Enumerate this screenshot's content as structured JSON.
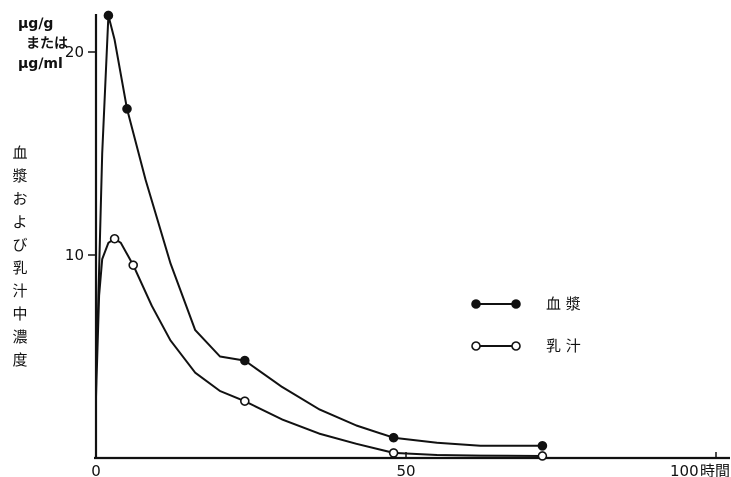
{
  "chart_data": {
    "type": "line",
    "title": "",
    "xlabel": "時間",
    "ylabel": "血漿および乳汁中濃度",
    "yunit_lines": [
      "μg/g",
      "または",
      "μg/ml"
    ],
    "xlim": [
      0,
      100
    ],
    "ylim": [
      0,
      23
    ],
    "xticks": [
      0,
      50,
      100
    ],
    "xtick_labels": [
      "0",
      "50",
      "100"
    ],
    "yticks": [
      10,
      20
    ],
    "ytick_labels": [
      "10",
      "20"
    ],
    "grid": false,
    "legend_position": "right",
    "series": [
      {
        "name": "血漿",
        "marker": "filled-circle",
        "color": "#111111",
        "x": [
          2,
          5,
          24,
          48,
          72
        ],
        "y": [
          21.8,
          17.2,
          4.8,
          1.0,
          0.6
        ],
        "curve_x": [
          0,
          1,
          2,
          3,
          5,
          8,
          12,
          16,
          20,
          24,
          30,
          36,
          42,
          48,
          55,
          62,
          72
        ],
        "curve_y": [
          3.5,
          15.0,
          21.8,
          20.6,
          17.2,
          13.7,
          9.6,
          6.3,
          5.0,
          4.8,
          3.5,
          2.4,
          1.6,
          1.0,
          0.75,
          0.6,
          0.6
        ]
      },
      {
        "name": "乳汁",
        "marker": "open-circle",
        "color": "#111111",
        "x": [
          3,
          6,
          24,
          48,
          72
        ],
        "y": [
          10.8,
          9.5,
          2.8,
          0.25,
          0.1
        ],
        "curve_x": [
          0,
          0.5,
          1,
          2,
          3,
          4,
          6,
          9,
          12,
          16,
          20,
          24,
          30,
          36,
          42,
          48,
          55,
          62,
          72
        ],
        "curve_y": [
          3.0,
          8.0,
          9.8,
          10.6,
          10.8,
          10.6,
          9.5,
          7.5,
          5.8,
          4.2,
          3.3,
          2.8,
          1.9,
          1.2,
          0.7,
          0.25,
          0.15,
          0.12,
          0.1
        ]
      }
    ]
  }
}
